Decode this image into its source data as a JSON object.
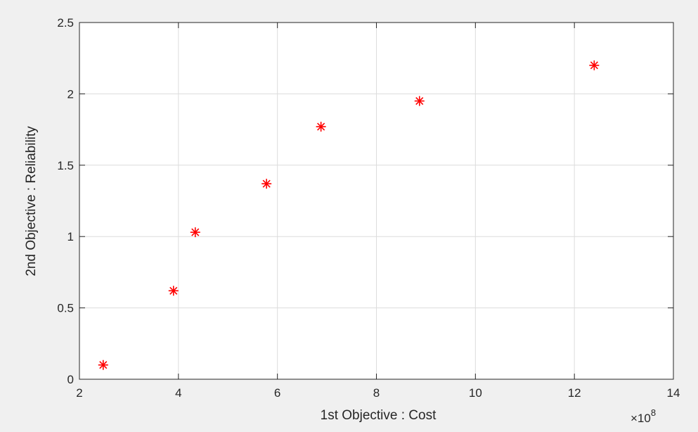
{
  "chart_data": {
    "type": "scatter",
    "title": "",
    "xlabel": "1st Objective : Cost",
    "ylabel": "2nd Objective : Reliability",
    "x_exponent_label": "×10",
    "x_exponent_power": "8",
    "xlim": [
      2,
      14
    ],
    "ylim": [
      0,
      2.5
    ],
    "x_ticks": [
      2,
      4,
      6,
      8,
      10,
      12,
      14
    ],
    "x_tick_labels": [
      "2",
      "4",
      "6",
      "8",
      "10",
      "12",
      "14"
    ],
    "y_ticks": [
      0,
      0.5,
      1,
      1.5,
      2,
      2.5
    ],
    "y_tick_labels": [
      "0",
      "0.5",
      "1",
      "1.5",
      "2",
      "2.5"
    ],
    "grid": true,
    "marker": "asterisk",
    "marker_color": "#ff0000",
    "series": [
      {
        "x": [
          2.48,
          3.9,
          4.34,
          5.78,
          6.88,
          8.87,
          12.4
        ],
        "y": [
          0.1,
          0.62,
          1.03,
          1.37,
          1.77,
          1.95,
          2.2
        ]
      }
    ]
  }
}
